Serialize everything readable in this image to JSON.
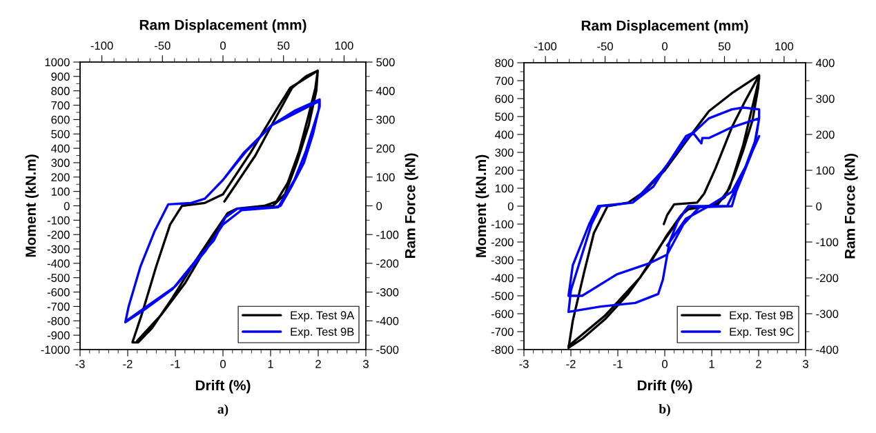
{
  "chart_data": [
    {
      "type": "line",
      "xlabel": "Drift (%)",
      "x2label": "Ram Displacement (mm)",
      "ylabel": "Moment (kN.m)",
      "y2label": "Ram Force (kN)",
      "xlim": [
        -3,
        3
      ],
      "xticks": [
        -3,
        -2,
        -1,
        0,
        1,
        2,
        3
      ],
      "x2lim": [
        -118,
        118
      ],
      "x2ticks": [
        -100,
        -50,
        0,
        50,
        100
      ],
      "ylim": [
        -1000,
        1000
      ],
      "yticks": [
        -1000,
        -900,
        -800,
        -700,
        -600,
        -500,
        -400,
        -300,
        -200,
        -100,
        0,
        100,
        200,
        300,
        400,
        500,
        600,
        700,
        800,
        900,
        1000
      ],
      "y2lim": [
        -500,
        500
      ],
      "y2ticks": [
        -500,
        -400,
        -300,
        -200,
        -100,
        0,
        100,
        200,
        300,
        400,
        500
      ],
      "legend": "lower right",
      "grid": false,
      "annotations": [
        "a)"
      ],
      "series": [
        {
          "name": "Exp. Test 9A",
          "color": "#000000",
          "x": [
            0.03,
            0.68,
            1.07,
            1.45,
            1.74,
            1.99,
            1.94,
            1.79,
            1.6,
            1.36,
            1.12,
            0.87,
            0.29,
            0.1,
            -0.19,
            -0.57,
            -1.06,
            -1.49,
            -1.78,
            -1.9,
            -1.69,
            -1.4,
            -1.11,
            -0.86,
            -0.38,
            0.0,
            0.58,
            1.07,
            1.41,
            1.99,
            1.96,
            1.8,
            1.55,
            1.3,
            1.05,
            0.8,
            0.3,
            0.05,
            -0.3,
            -0.8,
            -1.3,
            -1.8
          ],
          "values": [
            30,
            350,
            590,
            820,
            900,
            940,
            820,
            620,
            380,
            160,
            30,
            0,
            -20,
            -50,
            -190,
            -380,
            -640,
            -850,
            -950,
            -950,
            -740,
            -420,
            -130,
            0,
            20,
            80,
            370,
            640,
            820,
            940,
            800,
            560,
            300,
            80,
            0,
            -10,
            -20,
            -80,
            -260,
            -540,
            -760,
            -940
          ]
        },
        {
          "name": "Exp. Test 9B",
          "color": "#0000ff",
          "x": [
            0.0,
            0.44,
            1.02,
            1.5,
            2.03,
            2.01,
            1.89,
            1.7,
            1.45,
            1.21,
            1.07,
            0.3,
            0.05,
            -0.19,
            -0.57,
            -1.06,
            -1.64,
            -2.05,
            -1.98,
            -1.73,
            -1.44,
            -1.15,
            -0.67,
            -0.38,
            0.0,
            0.49,
            1.02,
            2.03,
            2.03,
            1.74,
            1.5,
            1.16,
            0.39,
            0.0,
            -0.38,
            -1.0,
            -1.6,
            -2.03
          ],
          "values": [
            180,
            370,
            560,
            660,
            740,
            670,
            500,
            300,
            140,
            0,
            -10,
            -20,
            -80,
            -240,
            -380,
            -580,
            -720,
            -810,
            -700,
            -420,
            -180,
            10,
            20,
            50,
            180,
            380,
            560,
            730,
            690,
            380,
            180,
            -10,
            -30,
            -130,
            -320,
            -560,
            -700,
            -800
          ]
        }
      ]
    },
    {
      "type": "line",
      "xlabel": "Drift (%)",
      "x2label": "Ram Displacement (mm)",
      "ylabel": "Moment (kN.m)",
      "y2label": "Ram Force (kN)",
      "xlim": [
        -3,
        3
      ],
      "xticks": [
        -3,
        -2,
        -1,
        0,
        1,
        2,
        3
      ],
      "x2lim": [
        -118,
        118
      ],
      "x2ticks": [
        -100,
        -50,
        0,
        50,
        100
      ],
      "ylim": [
        -800,
        800
      ],
      "yticks": [
        -800,
        -700,
        -600,
        -500,
        -400,
        -300,
        -200,
        -100,
        0,
        100,
        200,
        300,
        400,
        500,
        600,
        700,
        800
      ],
      "y2lim": [
        -400,
        400
      ],
      "y2ticks": [
        -400,
        -300,
        -200,
        -100,
        0,
        100,
        200,
        300,
        400
      ],
      "legend": "lower right",
      "grid": false,
      "annotations": [
        "b)"
      ],
      "series": [
        {
          "name": "Exp. Test 9B",
          "color": "#000000",
          "x": [
            -0.02,
            0.05,
            0.2,
            0.69,
            0.84,
            1.08,
            1.43,
            1.72,
            2.01,
            1.99,
            1.87,
            1.67,
            1.48,
            1.28,
            1.03,
            0.54,
            0.35,
            0.05,
            -0.34,
            -0.78,
            -1.27,
            -1.76,
            -2.05,
            -1.96,
            -1.71,
            -1.51,
            -1.22,
            -0.78,
            -0.44,
            0.0,
            0.45,
            0.94,
            1.43,
            2.01,
            2.01,
            1.67,
            1.38,
            1.13,
            0.45,
            -0.04,
            -0.53,
            -1.27,
            -2.05
          ],
          "values": [
            -100,
            -50,
            10,
            20,
            70,
            210,
            440,
            590,
            730,
            660,
            480,
            310,
            170,
            50,
            0,
            -10,
            -50,
            -160,
            -330,
            -490,
            -630,
            -740,
            -790,
            -640,
            -360,
            -150,
            0,
            20,
            80,
            200,
            360,
            530,
            630,
            730,
            710,
            340,
            100,
            10,
            -20,
            -200,
            -400,
            -610,
            -780
          ]
        },
        {
          "name": "Exp. Test 9C",
          "color": "#0000ff",
          "x": [
            -0.04,
            0.45,
            0.94,
            1.43,
            1.67,
            2.01,
            2.01,
            1.92,
            1.72,
            1.48,
            1.33,
            0.94,
            0.5,
            0.3,
            0.1,
            -0.04,
            -0.14,
            -0.63,
            -1.37,
            -2.05,
            -2.0,
            -1.81,
            -1.56,
            -1.37,
            -0.68,
            -0.24,
            0.0,
            0.45,
            0.6,
            0.78,
            0.8,
            0.94,
            1.43,
            2.01,
            1.92,
            1.72,
            1.52,
            1.43,
            0.74,
            0.4,
            0.05,
            -0.34,
            -1.02,
            -1.76,
            -2.05,
            -1.96,
            -1.61,
            -1.42,
            -0.68,
            0.0,
            0.02,
            0.05,
            0.45,
            0.94,
            1.43,
            1.72,
            2.01
          ],
          "values": [
            200,
            370,
            490,
            540,
            550,
            540,
            490,
            360,
            220,
            80,
            0,
            0,
            0,
            -70,
            -200,
            -410,
            -490,
            -540,
            -560,
            -590,
            -470,
            -310,
            -100,
            0,
            20,
            110,
            210,
            390,
            410,
            350,
            380,
            380,
            440,
            490,
            340,
            210,
            80,
            0,
            -5,
            -100,
            -270,
            -320,
            -380,
            -500,
            -500,
            -330,
            -100,
            0,
            20,
            210,
            null,
            -220,
            -70,
            0,
            80,
            220,
            390
          ]
        }
      ]
    }
  ]
}
